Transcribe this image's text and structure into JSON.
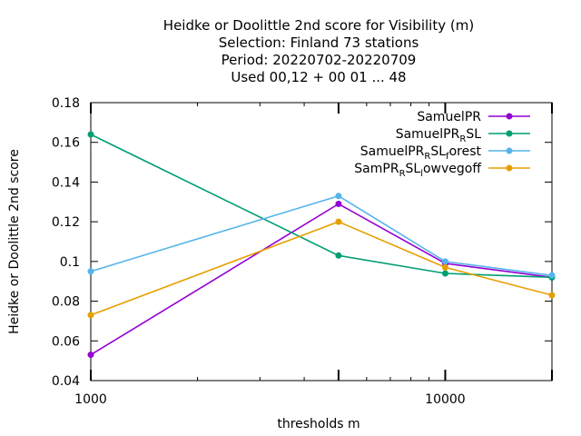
{
  "chart_data": {
    "type": "line",
    "title_lines": [
      "Heidke or Doolittle 2nd score  for Visibility (m)",
      "Selection: Finland     73 stations",
      "Period: 20220702-20220709",
      "Used  00,12  + 00 01 ... 48"
    ],
    "xlabel": "thresholds m",
    "ylabel": "Heidke or Doolittle 2nd score",
    "x_scale": "log",
    "xlim": [
      1000,
      20000
    ],
    "ylim": [
      0.04,
      0.18
    ],
    "x_ticks": [
      {
        "value": 1000,
        "label": "1000"
      },
      {
        "value": 10000,
        "label": "10000"
      }
    ],
    "y_ticks": [
      {
        "value": 0.04,
        "label": "0.04"
      },
      {
        "value": 0.06,
        "label": "0.06"
      },
      {
        "value": 0.08,
        "label": "0.08"
      },
      {
        "value": 0.1,
        "label": "0.1"
      },
      {
        "value": 0.12,
        "label": "0.12"
      },
      {
        "value": 0.14,
        "label": "0.14"
      },
      {
        "value": 0.16,
        "label": "0.16"
      },
      {
        "value": 0.18,
        "label": "0.18"
      }
    ],
    "x": [
      1000,
      5000,
      10000,
      20000
    ],
    "legend_position": "top-right",
    "grid": false,
    "series": [
      {
        "name": "SamuelPR",
        "color": "#9400d3",
        "values": [
          0.053,
          0.129,
          0.099,
          0.092
        ]
      },
      {
        "name": "SamuelPR_RSL",
        "color": "#009e73",
        "values": [
          0.164,
          0.103,
          0.094,
          0.092
        ]
      },
      {
        "name": "SamuelPR_RSL_forest",
        "color": "#56b4e9",
        "values": [
          0.095,
          0.133,
          0.1,
          0.093
        ]
      },
      {
        "name": "SamPR_RSL_lowvegoff",
        "color": "#e69f00",
        "values": [
          0.073,
          0.12,
          0.097,
          0.083
        ]
      }
    ],
    "legend_labels": [
      {
        "main": "SamuelPR",
        "sub": "",
        "tail": ""
      },
      {
        "main": "SamuelPR",
        "sub": "R",
        "tail": "SL"
      },
      {
        "main": "SamuelPR",
        "sub": "R",
        "tail": "SL",
        "sub2": "f",
        "tail2": "orest"
      },
      {
        "main": "SamPR",
        "sub": "R",
        "tail": "SL",
        "sub2": "l",
        "tail2": "owvegoff"
      }
    ]
  }
}
